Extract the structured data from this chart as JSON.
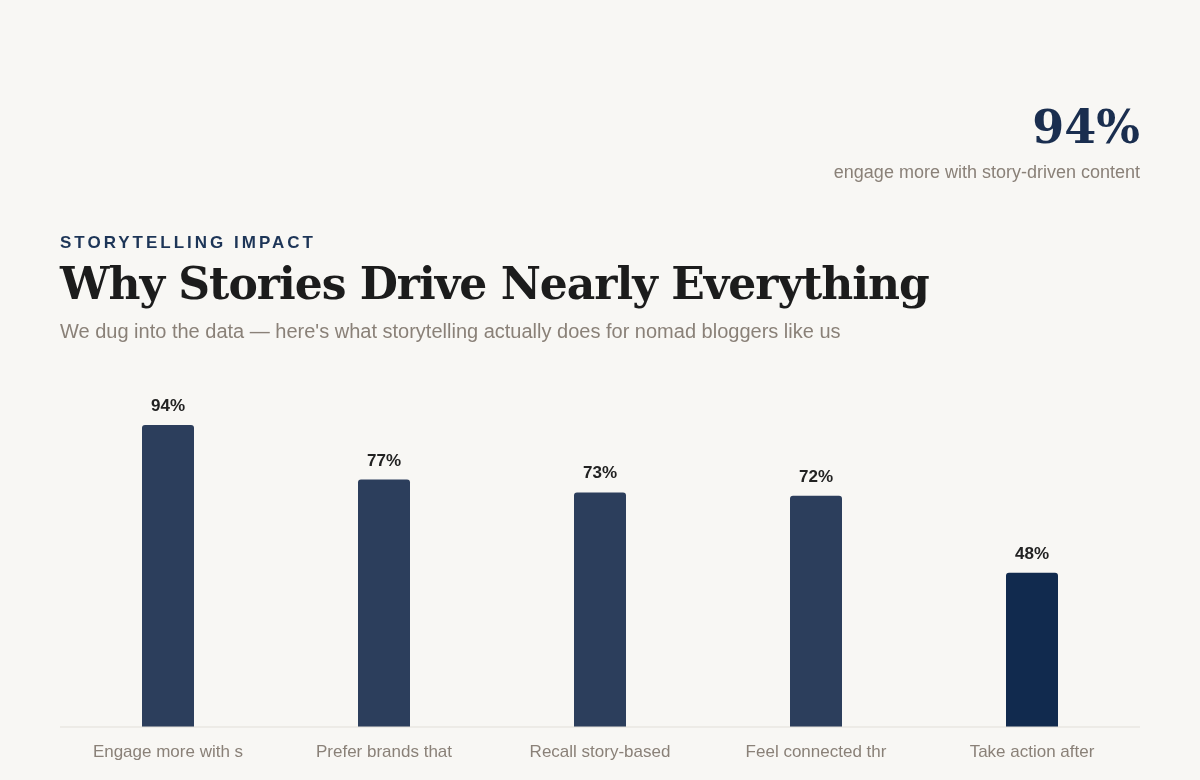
{
  "chart_data": {
    "type": "bar",
    "title": "Why Stories Drive Nearly Everything",
    "subtitle": "We dug into the data — here's what storytelling actually does for nomad bloggers like us",
    "annotations": [
      "STORYTELLING IMPACT",
      "94%",
      "engage more with story-driven content"
    ],
    "categories": [
      "Engage more with s",
      "Prefer brands that",
      "Recall story-based",
      "Feel connected thr",
      "Take action after"
    ],
    "values": [
      94,
      77,
      73,
      72,
      48
    ],
    "colors": [
      "#2c3e5c",
      "#2c3e5c",
      "#2c3e5c",
      "#2c3e5c",
      "#112a4e"
    ],
    "value_labels": [
      "94%",
      "77%",
      "73%",
      "72%",
      "48%"
    ]
  }
}
